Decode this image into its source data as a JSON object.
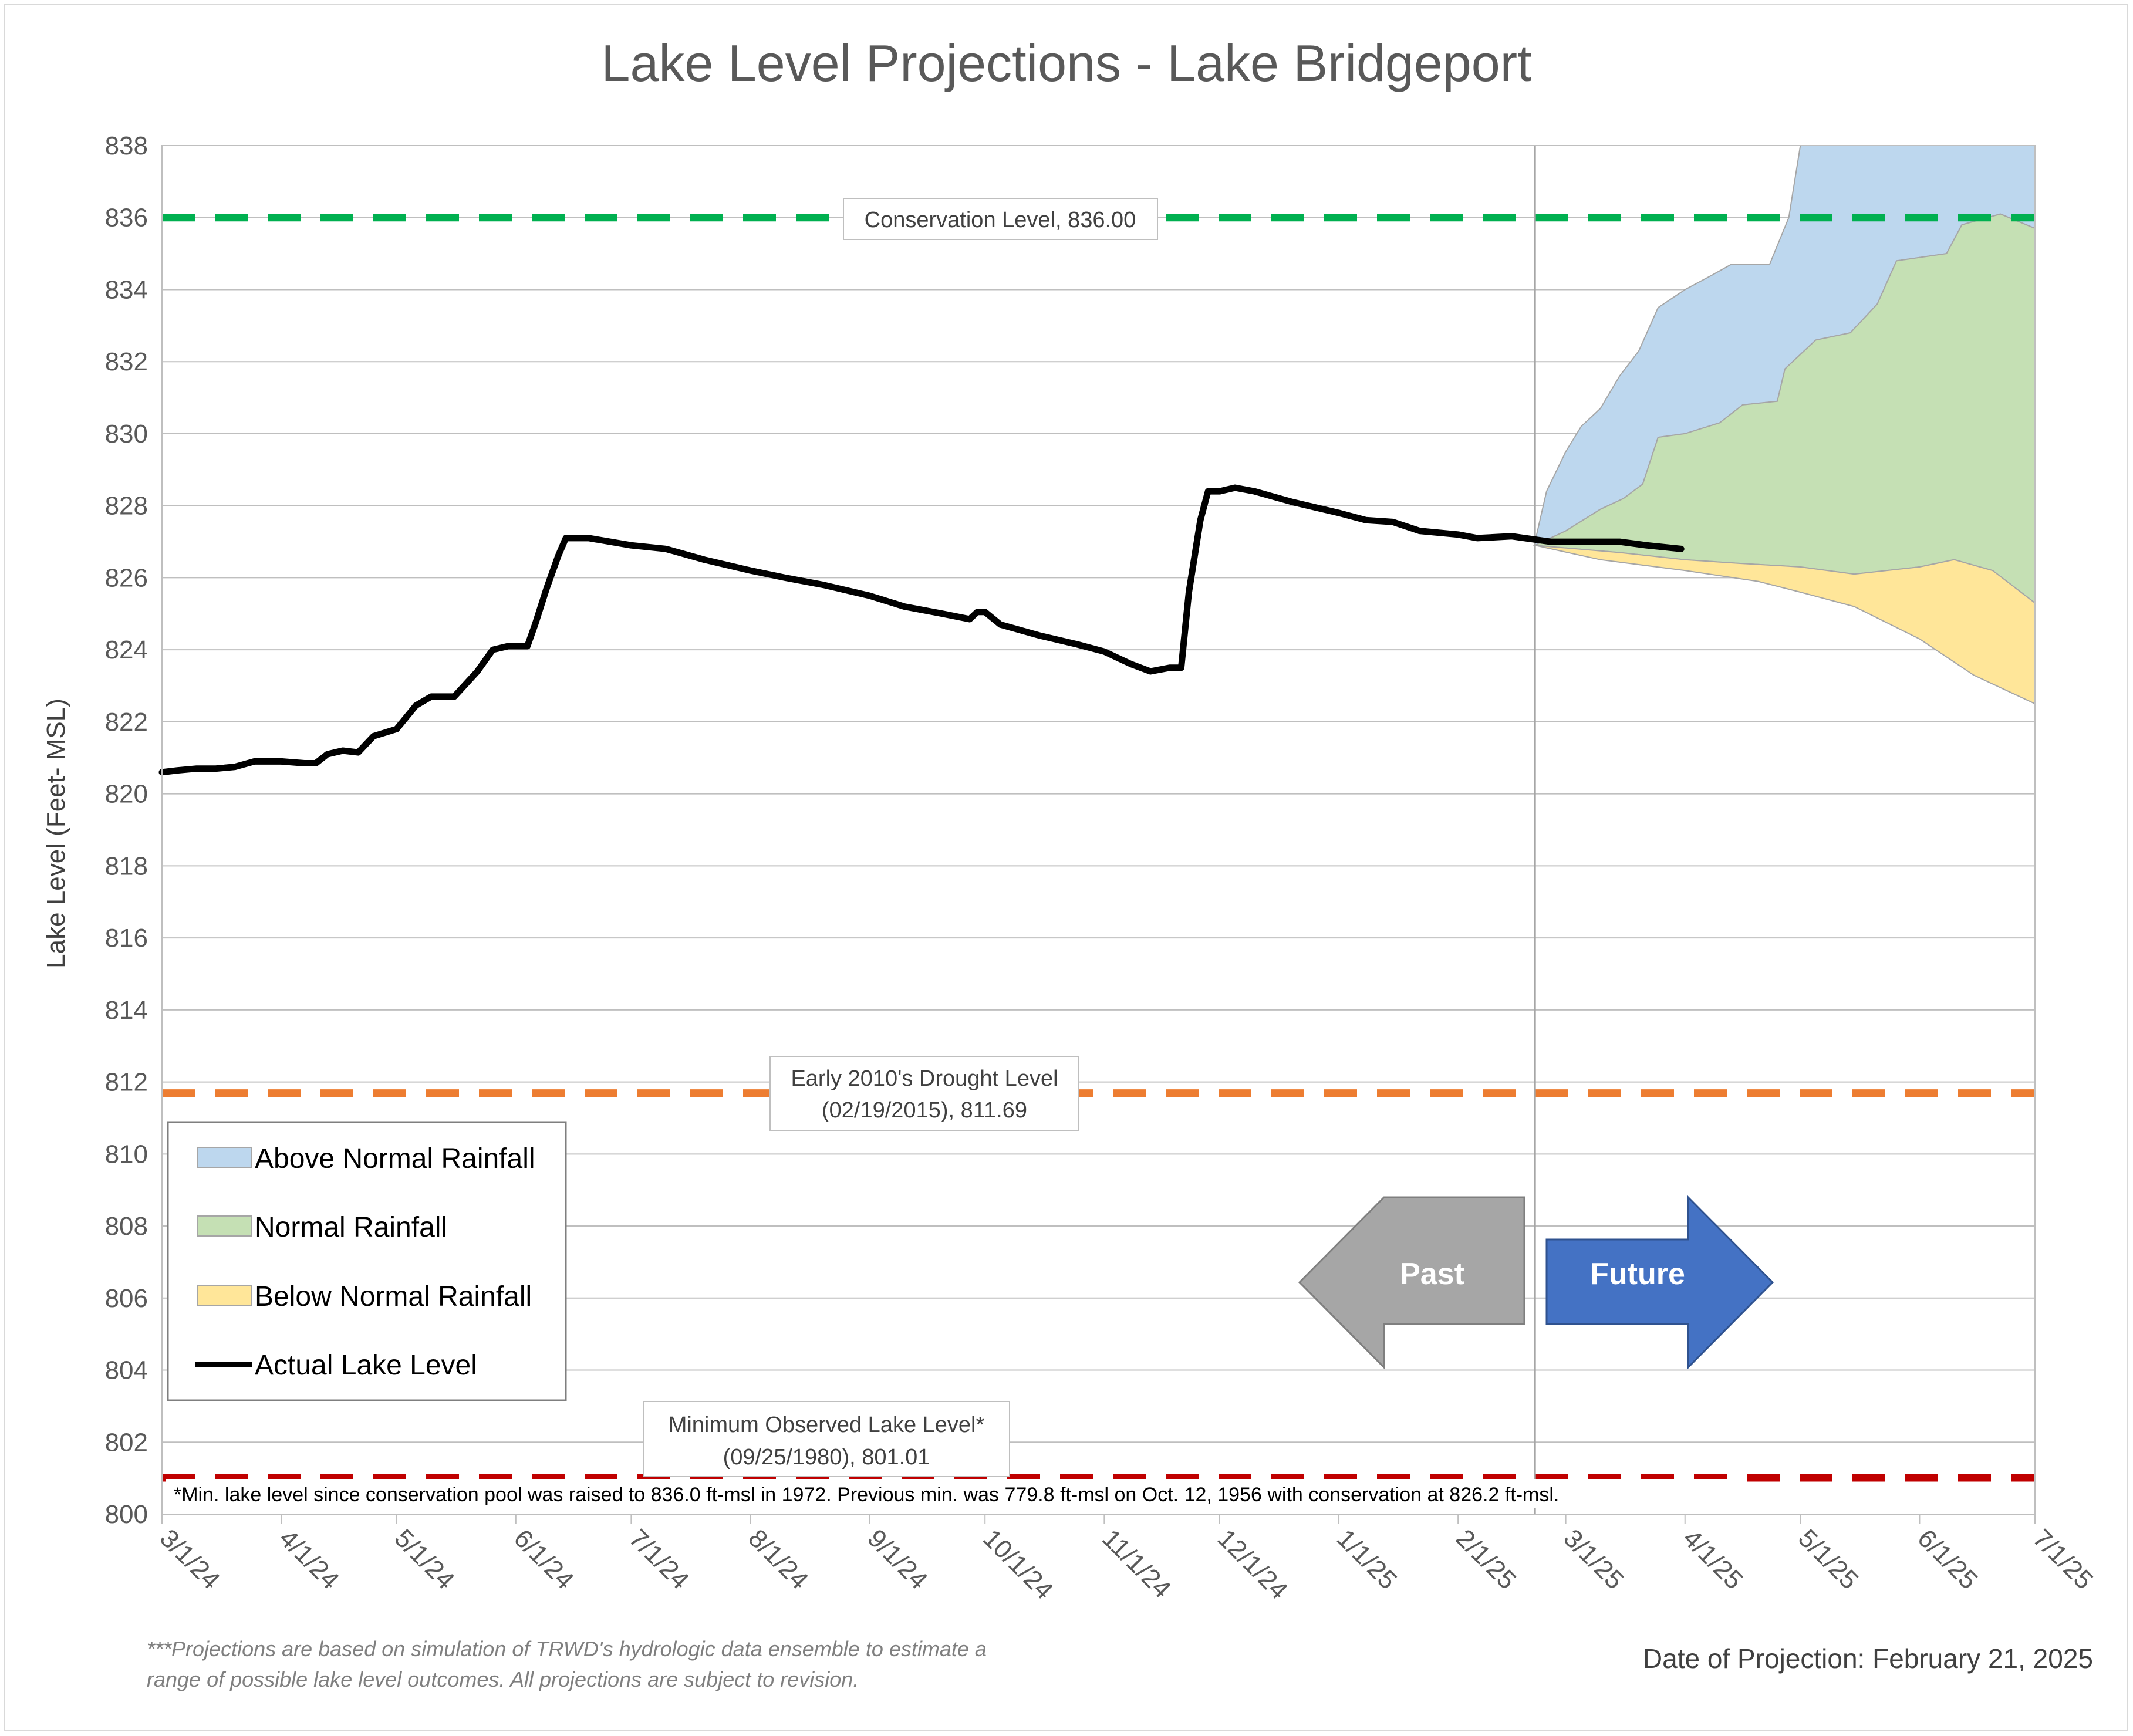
{
  "chart_data": {
    "type": "area",
    "title": "Lake Level Projections - Lake Bridgeport",
    "ylabel": "Lake Level (Feet- MSL)",
    "xlabel": "",
    "ylim": [
      800,
      838
    ],
    "y_ticks": [
      "800",
      "802",
      "804",
      "806",
      "808",
      "810",
      "812",
      "814",
      "816",
      "818",
      "820",
      "822",
      "824",
      "826",
      "828",
      "830",
      "832",
      "834",
      "836",
      "838"
    ],
    "x_ticks": [
      "3/1/24",
      "4/1/24",
      "5/1/24",
      "6/1/24",
      "7/1/24",
      "8/1/24",
      "9/1/24",
      "10/1/24",
      "11/1/24",
      "12/1/24",
      "1/1/25",
      "2/1/25",
      "3/1/25",
      "4/1/25",
      "5/1/25",
      "6/1/25",
      "7/1/25"
    ],
    "grid": "horizontal",
    "legend_position": "bottom-left",
    "legend": [
      {
        "label": "Above Normal Rainfall",
        "color": "#bdd7ee",
        "kind": "area"
      },
      {
        "label": "Normal Rainfall",
        "color": "#c5e0b4",
        "kind": "area"
      },
      {
        "label": "Below Normal Rainfall",
        "color": "#ffe699",
        "kind": "area"
      },
      {
        "label": "Actual Lake Level",
        "color": "#000000",
        "kind": "line"
      }
    ],
    "reference_lines": [
      {
        "name": "conservation",
        "value": 836.0,
        "color": "#00b050",
        "label": "Conservation Level, 836.00"
      },
      {
        "name": "drought",
        "value": 811.69,
        "color": "#ed7d31",
        "label_line1": "Early 2010's Drought Level",
        "label_line2": "(02/19/2015), 811.69"
      },
      {
        "name": "minimum",
        "value": 801.01,
        "color": "#c00000",
        "label_line1": "Minimum Observed Lake Level*",
        "label_line2": "(09/25/1980), 801.01"
      }
    ],
    "projection_start": "2025-02-21",
    "actual_lake_level": [
      [
        "2024-03-01",
        820.6
      ],
      [
        "2024-03-05",
        820.65
      ],
      [
        "2024-03-10",
        820.7
      ],
      [
        "2024-03-15",
        820.7
      ],
      [
        "2024-03-20",
        820.75
      ],
      [
        "2024-03-25",
        820.9
      ],
      [
        "2024-04-01",
        820.9
      ],
      [
        "2024-04-07",
        820.85
      ],
      [
        "2024-04-10",
        820.85
      ],
      [
        "2024-04-13",
        821.1
      ],
      [
        "2024-04-17",
        821.2
      ],
      [
        "2024-04-21",
        821.15
      ],
      [
        "2024-04-25",
        821.6
      ],
      [
        "2024-05-01",
        821.8
      ],
      [
        "2024-05-06",
        822.45
      ],
      [
        "2024-05-10",
        822.7
      ],
      [
        "2024-05-16",
        822.7
      ],
      [
        "2024-05-22",
        823.4
      ],
      [
        "2024-05-26",
        824.0
      ],
      [
        "2024-05-30",
        824.1
      ],
      [
        "2024-06-04",
        824.1
      ],
      [
        "2024-06-06",
        824.7
      ],
      [
        "2024-06-09",
        825.7
      ],
      [
        "2024-06-12",
        826.6
      ],
      [
        "2024-06-14",
        827.1
      ],
      [
        "2024-06-20",
        827.1
      ],
      [
        "2024-07-01",
        826.9
      ],
      [
        "2024-07-10",
        826.8
      ],
      [
        "2024-07-20",
        826.5
      ],
      [
        "2024-08-01",
        826.2
      ],
      [
        "2024-08-10",
        826.0
      ],
      [
        "2024-08-20",
        825.8
      ],
      [
        "2024-09-01",
        825.5
      ],
      [
        "2024-09-10",
        825.2
      ],
      [
        "2024-09-20",
        825.0
      ],
      [
        "2024-09-27",
        824.85
      ],
      [
        "2024-09-29",
        825.05
      ],
      [
        "2024-10-01",
        825.05
      ],
      [
        "2024-10-05",
        824.7
      ],
      [
        "2024-10-15",
        824.4
      ],
      [
        "2024-10-25",
        824.15
      ],
      [
        "2024-11-01",
        823.95
      ],
      [
        "2024-11-08",
        823.6
      ],
      [
        "2024-11-13",
        823.4
      ],
      [
        "2024-11-18",
        823.5
      ],
      [
        "2024-11-21",
        823.5
      ],
      [
        "2024-11-23",
        825.6
      ],
      [
        "2024-11-26",
        827.6
      ],
      [
        "2024-11-28",
        828.4
      ],
      [
        "2024-12-01",
        828.4
      ],
      [
        "2024-12-05",
        828.5
      ],
      [
        "2024-12-10",
        828.4
      ],
      [
        "2024-12-20",
        828.1
      ],
      [
        "2025-01-01",
        827.8
      ],
      [
        "2025-01-08",
        827.6
      ],
      [
        "2025-01-15",
        827.55
      ],
      [
        "2025-01-22",
        827.3
      ],
      [
        "2025-02-01",
        827.2
      ],
      [
        "2025-02-06",
        827.1
      ],
      [
        "2025-02-15",
        827.15
      ],
      [
        "2025-02-25",
        827.0
      ],
      [
        "2025-03-05",
        827.0
      ],
      [
        "2025-03-15",
        827.0
      ],
      [
        "2025-03-22",
        826.9
      ],
      [
        "2025-03-31",
        826.8
      ]
    ],
    "above_normal_upper": [
      [
        "2025-02-21",
        827.0
      ],
      [
        "2025-02-24",
        828.4
      ],
      [
        "2025-03-01",
        829.5
      ],
      [
        "2025-03-05",
        830.2
      ],
      [
        "2025-03-10",
        830.7
      ],
      [
        "2025-03-15",
        831.6
      ],
      [
        "2025-03-20",
        832.3
      ],
      [
        "2025-03-25",
        833.5
      ],
      [
        "2025-04-01",
        834.0
      ],
      [
        "2025-04-08",
        834.4
      ],
      [
        "2025-04-13",
        834.7
      ],
      [
        "2025-04-23",
        834.7
      ],
      [
        "2025-04-28",
        836.0
      ],
      [
        "2025-05-01",
        838.0
      ],
      [
        "2025-07-01",
        838.0
      ]
    ],
    "normal_upper": [
      [
        "2025-02-21",
        826.9
      ],
      [
        "2025-03-01",
        827.3
      ],
      [
        "2025-03-10",
        827.9
      ],
      [
        "2025-03-16",
        828.2
      ],
      [
        "2025-03-21",
        828.6
      ],
      [
        "2025-03-25",
        829.9
      ],
      [
        "2025-04-01",
        830.0
      ],
      [
        "2025-04-10",
        830.3
      ],
      [
        "2025-04-16",
        830.8
      ],
      [
        "2025-04-25",
        830.9
      ],
      [
        "2025-04-27",
        831.8
      ],
      [
        "2025-05-05",
        832.6
      ],
      [
        "2025-05-14",
        832.8
      ],
      [
        "2025-05-21",
        833.6
      ],
      [
        "2025-05-26",
        834.8
      ],
      [
        "2025-06-08",
        835.0
      ],
      [
        "2025-06-12",
        835.8
      ],
      [
        "2025-06-22",
        836.1
      ],
      [
        "2025-07-01",
        835.7
      ]
    ],
    "normal_lower": [
      [
        "2025-02-21",
        826.9
      ],
      [
        "2025-03-15",
        826.7
      ],
      [
        "2025-04-01",
        826.5
      ],
      [
        "2025-04-15",
        826.4
      ],
      [
        "2025-05-01",
        826.3
      ],
      [
        "2025-05-15",
        826.1
      ],
      [
        "2025-06-01",
        826.3
      ],
      [
        "2025-06-10",
        826.5
      ],
      [
        "2025-06-20",
        826.2
      ],
      [
        "2025-07-01",
        825.3
      ]
    ],
    "below_normal_lower": [
      [
        "2025-02-21",
        826.9
      ],
      [
        "2025-03-10",
        826.5
      ],
      [
        "2025-04-01",
        826.2
      ],
      [
        "2025-04-20",
        825.9
      ],
      [
        "2025-05-01",
        825.6
      ],
      [
        "2025-05-15",
        825.2
      ],
      [
        "2025-06-01",
        824.3
      ],
      [
        "2025-06-15",
        823.3
      ],
      [
        "2025-06-25",
        822.8
      ],
      [
        "2025-07-01",
        822.5
      ]
    ]
  },
  "arrows": {
    "past": "Past",
    "future": "Future",
    "past_color": "#a6a6a6",
    "future_color": "#4472c4"
  },
  "note": "*Min. lake level since conservation pool was raised to 836.0 ft-msl in 1972.  Previous min. was 779.8 ft-msl on Oct. 12, 1956 with conservation at 826.2 ft-msl.",
  "footnote_line1": "***Projections are based on simulation of TRWD's hydrologic data ensemble to estimate a",
  "footnote_line2": "range of possible lake level outcomes.  All projections are subject to revision.",
  "projection_date": "Date of Projection: February 21, 2025"
}
